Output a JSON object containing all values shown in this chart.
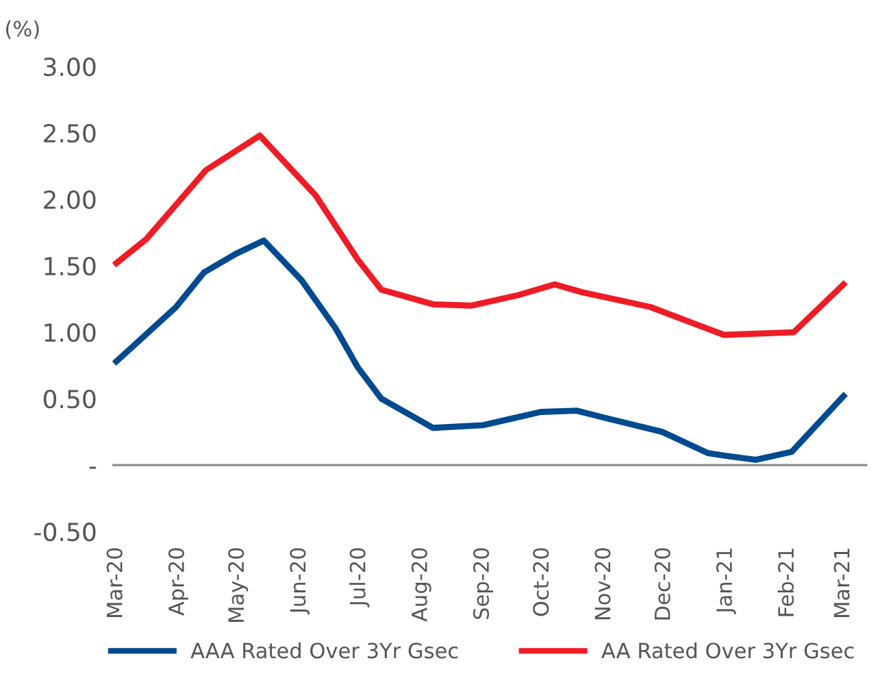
{
  "chart_data": {
    "type": "line",
    "ylabel": "(%)",
    "series": [
      {
        "name": "AAA Rated Over 3Yr Gsec",
        "color": "#004a8f",
        "x": [
          "2020-03-01",
          "2020-03-31",
          "2020-04-14",
          "2020-04-30",
          "2020-05-14",
          "2020-06-02",
          "2020-06-19",
          "2020-06-30",
          "2020-07-12",
          "2020-08-07",
          "2020-09-01",
          "2020-09-30",
          "2020-10-18",
          "2020-10-31",
          "2020-11-30",
          "2020-12-23",
          "2021-01-01",
          "2021-01-16",
          "2021-02-03",
          "2021-03-01"
        ],
        "values": [
          0.78,
          1.19,
          1.45,
          1.59,
          1.69,
          1.39,
          1.03,
          0.74,
          0.5,
          0.28,
          0.3,
          0.4,
          0.41,
          0.36,
          0.25,
          0.09,
          0.07,
          0.04,
          0.1,
          0.52
        ]
      },
      {
        "name": "AA Rated Over 3Yr Gsec",
        "color": "#ee1c25",
        "x": [
          "2020-03-01",
          "2020-03-16",
          "2020-03-31",
          "2020-04-15",
          "2020-05-12",
          "2020-06-09",
          "2020-06-30",
          "2020-07-12",
          "2020-08-07",
          "2020-08-26",
          "2020-09-19",
          "2020-10-07",
          "2020-10-21",
          "2020-11-24",
          "2020-12-31",
          "2021-02-04",
          "2021-03-01"
        ],
        "values": [
          1.52,
          1.7,
          1.96,
          2.22,
          2.48,
          2.03,
          1.55,
          1.32,
          1.21,
          1.2,
          1.28,
          1.36,
          1.3,
          1.19,
          0.98,
          1.0,
          1.36
        ]
      }
    ],
    "xlim": [
      "2020-02-28",
      "2021-03-13"
    ],
    "xticks": [
      {
        "value": "2020-03-01",
        "label": "Mar-20"
      },
      {
        "value": "2020-04-01",
        "label": "Apr-20"
      },
      {
        "value": "2020-05-01",
        "label": "May-20"
      },
      {
        "value": "2020-06-01",
        "label": "Jun-20"
      },
      {
        "value": "2020-07-01",
        "label": "Jul-20"
      },
      {
        "value": "2020-08-01",
        "label": "Aug-20"
      },
      {
        "value": "2020-09-01",
        "label": "Sep-20"
      },
      {
        "value": "2020-10-01",
        "label": "Oct-20"
      },
      {
        "value": "2020-11-01",
        "label": "Nov-20"
      },
      {
        "value": "2020-12-01",
        "label": "Dec-20"
      },
      {
        "value": "2021-01-01",
        "label": "Jan-21"
      },
      {
        "value": "2021-02-01",
        "label": "Feb-21"
      },
      {
        "value": "2021-03-01",
        "label": "Mar-21"
      }
    ],
    "ylim": [
      -0.5,
      3.0
    ],
    "yticks": [
      {
        "value": -0.5,
        "label": "-0.50"
      },
      {
        "value": 0,
        "label": "-"
      },
      {
        "value": 0.5,
        "label": "0.50"
      },
      {
        "value": 1,
        "label": "1.00"
      },
      {
        "value": 1.5,
        "label": "1.50"
      },
      {
        "value": 2,
        "label": "2.00"
      },
      {
        "value": 2.5,
        "label": "2.50"
      },
      {
        "value": 3,
        "label": "3.00"
      }
    ],
    "ref_lines": [
      {
        "axis": "y",
        "value": 0,
        "color": "#8c8c8c"
      }
    ],
    "grid": false,
    "legend": "bottom",
    "marker": "none",
    "line_style": "solid"
  }
}
